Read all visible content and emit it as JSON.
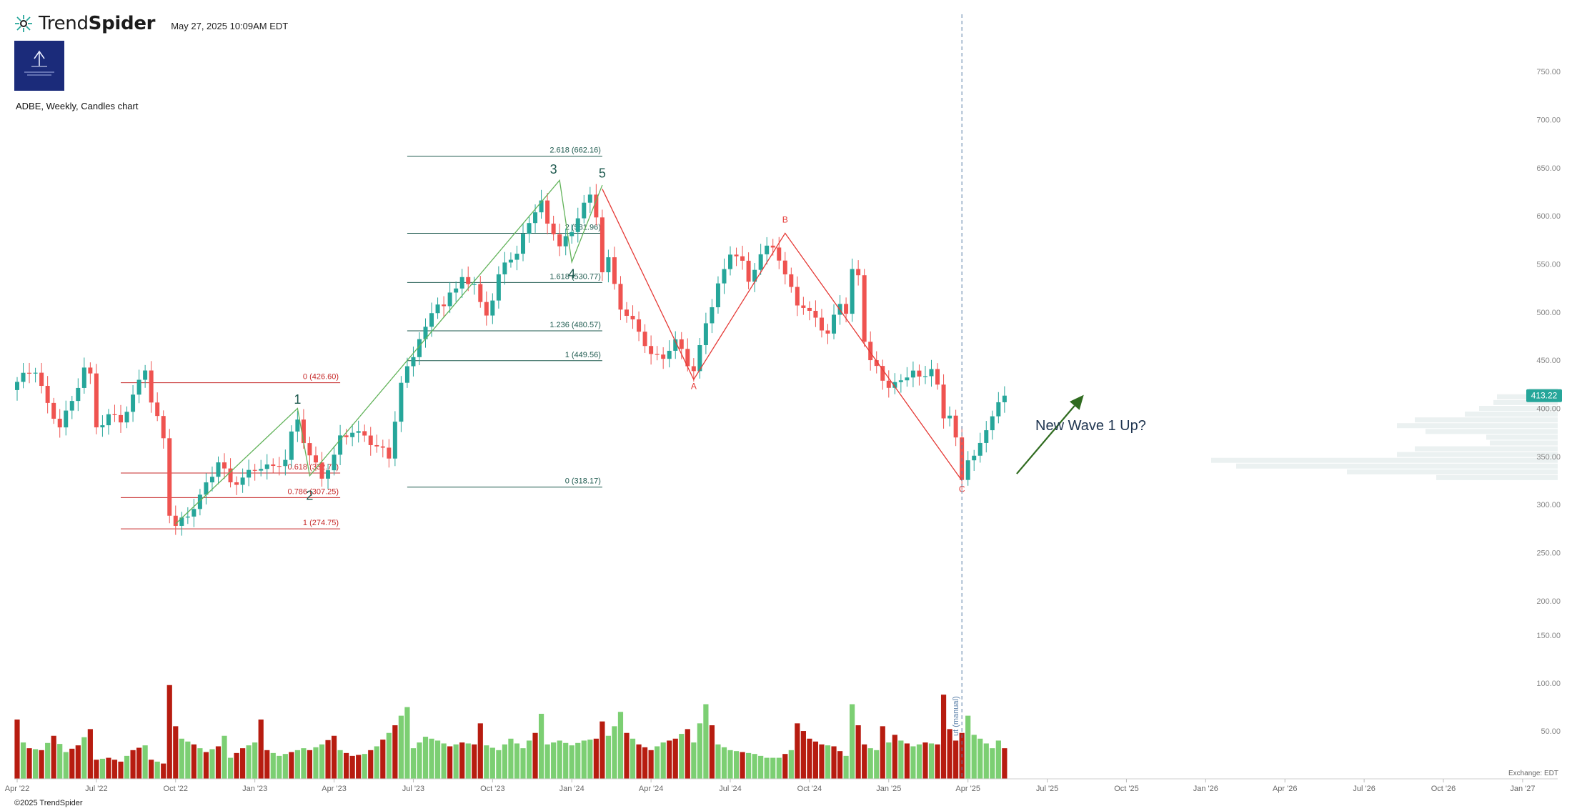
{
  "header": {
    "brand_light": "Trend",
    "brand_bold": "Spider",
    "timestamp": "May 27, 2025 10:09AM EDT",
    "symbol_line": "ADBE, Weekly, Candles chart",
    "copyright": "©2025 TrendSpider",
    "exchange": "Exchange: EDT"
  },
  "annotation_text": "New Wave 1 Up?",
  "icons": {
    "brand": "spider-logo-icon",
    "logo": "publisher-logo-icon"
  },
  "colors": {
    "up": "#26a69a",
    "down": "#ef5350",
    "vol_up": "#7ccf73",
    "vol_down": "#b71c10",
    "impulse": "#62b35a",
    "correction": "#e53935",
    "fib_green": "#1e5a4f",
    "fib_red": "#c62828",
    "arrow": "#2f6b1f",
    "price_tag": "#26a69a"
  },
  "chart_data": {
    "type": "candlestick",
    "symbol": "ADBE",
    "timeframe": "Weekly",
    "y_axis": {
      "ticks": [
        200,
        250,
        300,
        350,
        400,
        450,
        500,
        550,
        600,
        650,
        700,
        750
      ],
      "labels": [
        "200.00",
        "250.00",
        "300.00",
        "350.00",
        "400.00",
        "450.00",
        "500.00",
        "550.00",
        "600.00",
        "650.00",
        "700.00",
        "750.00"
      ]
    },
    "volume_axis": {
      "ticks": [
        50,
        100,
        150
      ],
      "labels": [
        "50.00",
        "100.00",
        "150.00"
      ]
    },
    "x_axis": {
      "labels": [
        "Apr '22",
        "Jul '22",
        "Oct '22",
        "Jan '23",
        "Apr '23",
        "Jul '23",
        "Oct '23",
        "Jan '24",
        "Apr '24",
        "Jul '24",
        "Oct '24",
        "Jan '25",
        "Apr '25",
        "Jul '25",
        "Oct '25",
        "Jan '26",
        "Apr '26",
        "Jul '26",
        "Oct '26",
        "Jan '27"
      ],
      "label_weeks": [
        0,
        13,
        26,
        39,
        52,
        65,
        78,
        91,
        104,
        117,
        130,
        143,
        156,
        169,
        182,
        195,
        208,
        221,
        234,
        247
      ]
    },
    "last_price": 413.22,
    "last_price_label": "413.22",
    "close_path": [
      [
        0,
        425
      ],
      [
        3,
        440
      ],
      [
        5,
        405
      ],
      [
        7,
        385
      ],
      [
        9,
        405
      ],
      [
        11,
        440
      ],
      [
        12,
        430
      ],
      [
        13,
        380
      ],
      [
        15,
        395
      ],
      [
        17,
        390
      ],
      [
        19,
        410
      ],
      [
        21,
        440
      ],
      [
        22,
        405
      ],
      [
        24,
        370
      ],
      [
        25,
        295
      ],
      [
        26,
        280
      ],
      [
        28,
        290
      ],
      [
        30,
        305
      ],
      [
        32,
        330
      ],
      [
        33,
        345
      ],
      [
        35,
        325
      ],
      [
        37,
        330
      ],
      [
        40,
        338
      ],
      [
        42,
        335
      ],
      [
        44,
        350
      ],
      [
        45,
        375
      ],
      [
        46,
        390
      ],
      [
        47,
        370
      ],
      [
        48,
        352
      ],
      [
        50,
        325
      ],
      [
        52,
        348
      ],
      [
        53,
        368
      ],
      [
        55,
        380
      ],
      [
        57,
        372
      ],
      [
        59,
        360
      ],
      [
        61,
        345
      ],
      [
        62,
        388
      ],
      [
        63,
        425
      ],
      [
        65,
        458
      ],
      [
        66,
        478
      ],
      [
        67,
        484
      ],
      [
        69,
        510
      ],
      [
        70,
        505
      ],
      [
        72,
        522
      ],
      [
        73,
        540
      ],
      [
        74,
        530
      ],
      [
        75,
        528
      ],
      [
        76,
        515
      ],
      [
        77,
        502
      ],
      [
        78,
        510
      ],
      [
        79,
        535
      ],
      [
        80,
        552
      ],
      [
        82,
        555
      ],
      [
        83,
        580
      ],
      [
        84,
        598
      ],
      [
        86,
        615
      ],
      [
        87,
        595
      ],
      [
        88,
        585
      ],
      [
        89,
        565
      ],
      [
        90,
        573
      ],
      [
        91,
        583
      ],
      [
        92,
        598
      ],
      [
        94,
        622
      ],
      [
        95,
        605
      ],
      [
        96,
        545
      ],
      [
        97,
        555
      ],
      [
        98,
        530
      ],
      [
        99,
        505
      ],
      [
        100,
        492
      ],
      [
        102,
        480
      ],
      [
        104,
        455
      ],
      [
        106,
        458
      ],
      [
        108,
        468
      ],
      [
        109,
        460
      ],
      [
        110,
        445
      ],
      [
        111,
        435
      ],
      [
        112,
        460
      ],
      [
        113,
        490
      ],
      [
        114,
        510
      ],
      [
        115,
        530
      ],
      [
        116,
        545
      ],
      [
        117,
        565
      ],
      [
        118,
        560
      ],
      [
        119,
        548
      ],
      [
        120,
        528
      ],
      [
        121,
        545
      ],
      [
        122,
        558
      ],
      [
        123,
        565
      ],
      [
        124,
        570
      ],
      [
        125,
        560
      ],
      [
        126,
        540
      ],
      [
        127,
        525
      ],
      [
        128,
        510
      ],
      [
        129,
        505
      ],
      [
        130,
        495
      ],
      [
        131,
        490
      ],
      [
        132,
        483
      ],
      [
        133,
        478
      ],
      [
        134,
        495
      ],
      [
        135,
        512
      ],
      [
        136,
        505
      ],
      [
        137,
        545
      ],
      [
        138,
        535
      ],
      [
        139,
        470
      ],
      [
        140,
        450
      ],
      [
        141,
        438
      ],
      [
        142,
        425
      ],
      [
        143,
        425
      ],
      [
        144,
        430
      ],
      [
        145,
        428
      ],
      [
        146,
        435
      ],
      [
        147,
        445
      ],
      [
        148,
        432
      ],
      [
        149,
        428
      ],
      [
        150,
        440
      ],
      [
        151,
        425
      ],
      [
        152,
        385
      ],
      [
        153,
        390
      ],
      [
        154,
        375
      ],
      [
        155,
        330
      ],
      [
        156,
        345
      ],
      [
        157,
        352
      ],
      [
        158,
        368
      ],
      [
        159,
        375
      ],
      [
        160,
        385
      ],
      [
        161,
        405
      ],
      [
        162,
        413
      ]
    ],
    "volume_path": [
      [
        0,
        62
      ],
      [
        1,
        38
      ],
      [
        2,
        32
      ],
      [
        4,
        30
      ],
      [
        6,
        45
      ],
      [
        8,
        28
      ],
      [
        10,
        35
      ],
      [
        12,
        52
      ],
      [
        13,
        20
      ],
      [
        15,
        22
      ],
      [
        17,
        18
      ],
      [
        19,
        30
      ],
      [
        21,
        35
      ],
      [
        22,
        20
      ],
      [
        24,
        16
      ],
      [
        25,
        98
      ],
      [
        26,
        55
      ],
      [
        27,
        42
      ],
      [
        29,
        36
      ],
      [
        31,
        28
      ],
      [
        33,
        34
      ],
      [
        34,
        45
      ],
      [
        35,
        22
      ],
      [
        37,
        32
      ],
      [
        39,
        38
      ],
      [
        40,
        62
      ],
      [
        41,
        30
      ],
      [
        43,
        24
      ],
      [
        45,
        28
      ],
      [
        47,
        32
      ],
      [
        48,
        30
      ],
      [
        50,
        36
      ],
      [
        52,
        45
      ],
      [
        53,
        30
      ],
      [
        55,
        24
      ],
      [
        57,
        26
      ],
      [
        59,
        34
      ],
      [
        61,
        48
      ],
      [
        62,
        56
      ],
      [
        63,
        66
      ],
      [
        64,
        75
      ],
      [
        65,
        32
      ],
      [
        67,
        44
      ],
      [
        69,
        40
      ],
      [
        71,
        34
      ],
      [
        73,
        38
      ],
      [
        75,
        36
      ],
      [
        76,
        58
      ],
      [
        77,
        35
      ],
      [
        79,
        30
      ],
      [
        81,
        42
      ],
      [
        83,
        32
      ],
      [
        85,
        48
      ],
      [
        86,
        68
      ],
      [
        87,
        36
      ],
      [
        89,
        40
      ],
      [
        91,
        35
      ],
      [
        93,
        40
      ],
      [
        95,
        42
      ],
      [
        96,
        60
      ],
      [
        97,
        45
      ],
      [
        98,
        55
      ],
      [
        99,
        70
      ],
      [
        100,
        48
      ],
      [
        102,
        36
      ],
      [
        104,
        30
      ],
      [
        106,
        38
      ],
      [
        108,
        42
      ],
      [
        110,
        52
      ],
      [
        111,
        38
      ],
      [
        112,
        58
      ],
      [
        113,
        78
      ],
      [
        114,
        56
      ],
      [
        115,
        36
      ],
      [
        117,
        30
      ],
      [
        119,
        28
      ],
      [
        121,
        26
      ],
      [
        123,
        22
      ],
      [
        125,
        22
      ],
      [
        126,
        26
      ],
      [
        127,
        30
      ],
      [
        128,
        58
      ],
      [
        130,
        42
      ],
      [
        132,
        36
      ],
      [
        134,
        34
      ],
      [
        136,
        24
      ],
      [
        137,
        78
      ],
      [
        138,
        56
      ],
      [
        139,
        36
      ],
      [
        140,
        32
      ],
      [
        141,
        30
      ],
      [
        142,
        55
      ],
      [
        143,
        38
      ],
      [
        144,
        46
      ],
      [
        145,
        40
      ],
      [
        147,
        34
      ],
      [
        149,
        38
      ],
      [
        151,
        36
      ],
      [
        152,
        88
      ],
      [
        153,
        52
      ],
      [
        154,
        40
      ],
      [
        155,
        48
      ],
      [
        156,
        66
      ],
      [
        157,
        46
      ],
      [
        158,
        42
      ],
      [
        160,
        32
      ],
      [
        161,
        40
      ],
      [
        162,
        32
      ]
    ],
    "volume_up_weeks": [
      1,
      3,
      5,
      7,
      8,
      11,
      14,
      18,
      21,
      23,
      27,
      28,
      30,
      32,
      34,
      35,
      38,
      39,
      42,
      43,
      44,
      46,
      47,
      49,
      50,
      53,
      57,
      59,
      61,
      63,
      64,
      65,
      66,
      67,
      68,
      69,
      70,
      72,
      74,
      77,
      78,
      79,
      80,
      81,
      82,
      83,
      84,
      86,
      87,
      88,
      89,
      90,
      91,
      92,
      93,
      94,
      97,
      98,
      99,
      101,
      105,
      106,
      109,
      111,
      112,
      113,
      115,
      116,
      117,
      118,
      120,
      121,
      122,
      123,
      124,
      125,
      127,
      133,
      136,
      137,
      140,
      141,
      143,
      145,
      147,
      148,
      150,
      156,
      157,
      158,
      159,
      160,
      161
    ],
    "fib_sets": [
      {
        "color": "fib_red",
        "start_week": 17,
        "end_week": 53,
        "levels": [
          {
            "price": 426.6,
            "label": "0 (426.60)"
          },
          {
            "price": 332.76,
            "label": "0.618 (332.76)"
          },
          {
            "price": 307.25,
            "label": "0.786 (307.25)"
          },
          {
            "price": 274.75,
            "label": "1 (274.75)"
          }
        ]
      },
      {
        "color": "fib_green",
        "start_week": 64,
        "end_week": 96,
        "levels": [
          {
            "price": 662.16,
            "label": "2.618 (662.16)"
          },
          {
            "price": 581.96,
            "label": "2 (581.96)"
          },
          {
            "price": 530.77,
            "label": "1.618 (530.77)"
          },
          {
            "price": 480.57,
            "label": "1.236 (480.57)"
          },
          {
            "price": 449.56,
            "label": "1 (449.56)"
          },
          {
            "price": 318.17,
            "label": "0 (318.17)"
          }
        ]
      }
    ],
    "wave_impulse": [
      [
        26,
        280
      ],
      [
        46,
        400
      ],
      [
        48,
        330
      ],
      [
        89,
        637
      ],
      [
        91,
        552
      ],
      [
        96,
        632
      ]
    ],
    "wave_impulse_labels": [
      {
        "text": "1",
        "week": 46,
        "price": 405
      },
      {
        "text": "2",
        "week": 48,
        "price": 305
      },
      {
        "text": "3",
        "week": 88,
        "price": 644
      },
      {
        "text": "4",
        "week": 91,
        "price": 535
      },
      {
        "text": "5",
        "week": 96,
        "price": 640
      }
    ],
    "wave_correction": [
      [
        96,
        628
      ],
      [
        111,
        430
      ],
      [
        126,
        582
      ],
      [
        155,
        325
      ]
    ],
    "wave_correction_labels": [
      {
        "text": "A",
        "week": 111,
        "price": 420
      },
      {
        "text": "B",
        "week": 126,
        "price": 593
      },
      {
        "text": "C",
        "week": 155,
        "price": 313
      }
    ],
    "vertical_marker_week": 155,
    "marker_label": "ut (manual)",
    "arrow": {
      "from": [
        164,
        332
      ],
      "to": [
        175,
        414
      ]
    },
    "volume_profile": [
      {
        "price": 418,
        "extent": 0.08
      },
      {
        "price": 412,
        "extent": 0.17
      },
      {
        "price": 406,
        "extent": 0.18
      },
      {
        "price": 400,
        "extent": 0.22
      },
      {
        "price": 394,
        "extent": 0.26
      },
      {
        "price": 388,
        "extent": 0.4
      },
      {
        "price": 382,
        "extent": 0.45
      },
      {
        "price": 376,
        "extent": 0.37
      },
      {
        "price": 370,
        "extent": 0.2
      },
      {
        "price": 364,
        "extent": 0.19
      },
      {
        "price": 358,
        "extent": 0.4
      },
      {
        "price": 352,
        "extent": 0.45
      },
      {
        "price": 346,
        "extent": 0.97
      },
      {
        "price": 340,
        "extent": 0.9
      },
      {
        "price": 334,
        "extent": 0.59
      },
      {
        "price": 328,
        "extent": 0.34
      }
    ]
  }
}
